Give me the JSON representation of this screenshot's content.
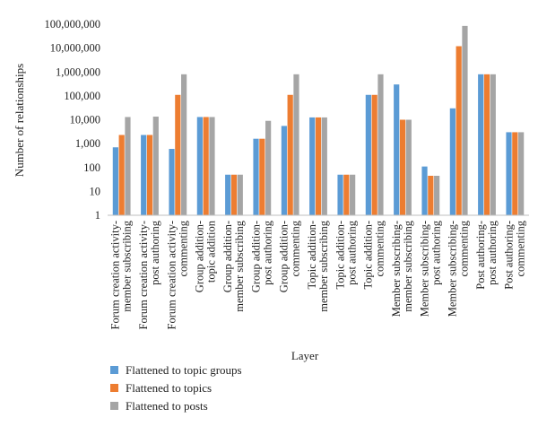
{
  "chart_data": {
    "type": "bar",
    "title": "",
    "xlabel": "Layer",
    "ylabel": "Number of relationships",
    "yscale": "log",
    "ylim": [
      1,
      100000000
    ],
    "y_ticks": [
      "1",
      "10",
      "100",
      "1,000",
      "10,000",
      "100,000",
      "1,000,000",
      "10,000,000",
      "100,000,000"
    ],
    "grid": false,
    "legend_position": "bottom-left",
    "categories": [
      [
        "Forum creation activity-",
        "member subscribing"
      ],
      [
        "Forum creation activity-",
        "post authoring"
      ],
      [
        "Forum creation activity-",
        "commenting"
      ],
      [
        "Group addition-",
        "topic addition"
      ],
      [
        "Group addition-",
        "member subscribing"
      ],
      [
        "Group addition-",
        "post authoring"
      ],
      [
        "Group addition-",
        "commenting"
      ],
      [
        "Topic addition-",
        "member subscribing"
      ],
      [
        "Topic addition-",
        "post authoring"
      ],
      [
        "Topic addition-",
        "commenting"
      ],
      [
        "Member subscribing-",
        "member subscribing"
      ],
      [
        "Member subscribing-",
        "post authoring"
      ],
      [
        "Member subscribing-",
        "commenting"
      ],
      [
        "Post authoring-",
        "post authoring"
      ],
      [
        "Post authoring-",
        "commenting"
      ]
    ],
    "series": [
      {
        "name": "Flattened to topic groups",
        "color": "#5b9bd5",
        "values": [
          700,
          2300,
          600,
          13000,
          50,
          1600,
          5500,
          12500,
          50,
          110000,
          300000,
          110,
          30000,
          800000,
          3000
        ]
      },
      {
        "name": "Flattened to topics",
        "color": "#ed7d31",
        "values": [
          2300,
          2300,
          110000,
          13000,
          50,
          1600,
          110000,
          12500,
          50,
          110000,
          10000,
          45,
          12000000,
          800000,
          3000
        ]
      },
      {
        "name": "Flattened to posts",
        "color": "#a5a5a5",
        "values": [
          13000,
          13500,
          800000,
          13000,
          50,
          9000,
          800000,
          12500,
          50,
          800000,
          10000,
          45,
          85000000,
          800000,
          3000
        ]
      }
    ]
  }
}
